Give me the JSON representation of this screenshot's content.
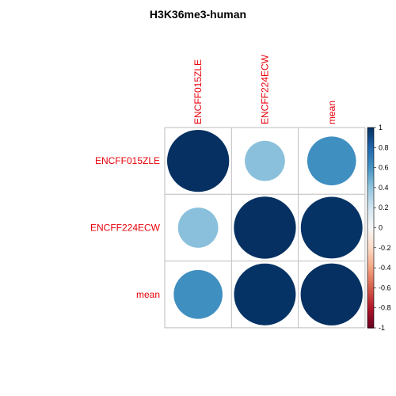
{
  "chart_data": {
    "type": "heatmap",
    "title": "H3K36me3-human",
    "row_labels": [
      "ENCFF015ZLE",
      "ENCFF224ECW",
      "mean"
    ],
    "col_labels": [
      "ENCFF015ZLE",
      "ENCFF224ECW",
      "mean"
    ],
    "matrix": [
      [
        1.0,
        0.42,
        0.62
      ],
      [
        0.42,
        1.0,
        0.99
      ],
      [
        0.62,
        0.99,
        1.0
      ]
    ],
    "colorbar": {
      "range": [
        -1,
        1
      ],
      "ticks": [
        "1",
        "0.8",
        "0.6",
        "0.4",
        "0.2",
        "0",
        "-0.2",
        "-0.4",
        "-0.6",
        "-0.8",
        "-1"
      ]
    },
    "label_color": "#e8000b",
    "grid_color": "#bebebe"
  }
}
